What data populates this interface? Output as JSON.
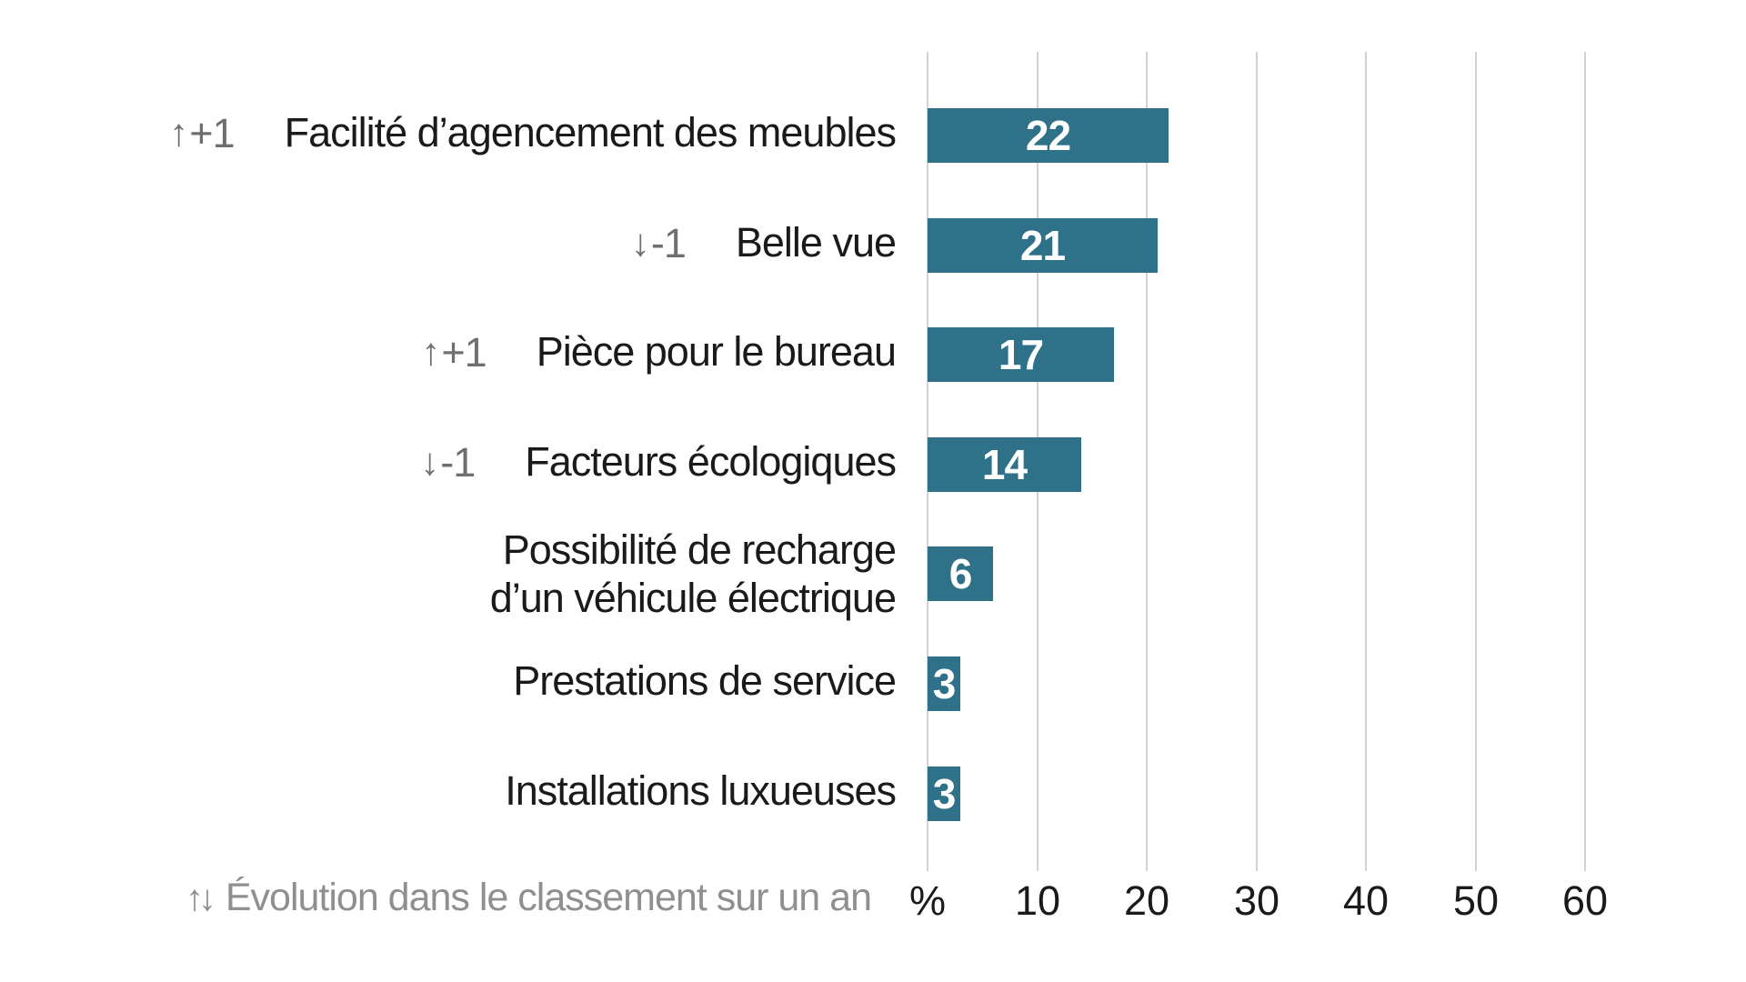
{
  "chart_data": {
    "type": "bar",
    "orientation": "horizontal",
    "title": "",
    "xlabel": "%",
    "ylabel": "",
    "xlim": [
      0,
      60
    ],
    "grid": true,
    "legend": "none",
    "unit_label": "%",
    "xticks": [
      {
        "label": "%",
        "value": 0
      },
      {
        "label": "10",
        "value": 10
      },
      {
        "label": "20",
        "value": 20
      },
      {
        "label": "30",
        "value": 30
      },
      {
        "label": "40",
        "value": 40
      },
      {
        "label": "50",
        "value": 50
      },
      {
        "label": "60",
        "value": 60
      }
    ],
    "rows": [
      {
        "label_lines": [
          "Facilité d’agencement des meubles"
        ],
        "change": {
          "direction": "up",
          "arrow": "↑",
          "text": "+1"
        },
        "value": 22
      },
      {
        "label_lines": [
          "Belle vue"
        ],
        "change": {
          "direction": "down",
          "arrow": "↓",
          "text": "-1"
        },
        "value": 21
      },
      {
        "label_lines": [
          "Pièce pour le bureau"
        ],
        "change": {
          "direction": "up",
          "arrow": "↑",
          "text": "+1"
        },
        "value": 17
      },
      {
        "label_lines": [
          "Facteurs écologiques"
        ],
        "change": {
          "direction": "down",
          "arrow": "↓",
          "text": "-1"
        },
        "value": 14
      },
      {
        "label_lines": [
          "Possibilité de recharge",
          "d’un véhicule électrique"
        ],
        "change": null,
        "value": 6
      },
      {
        "label_lines": [
          "Prestations de service"
        ],
        "change": null,
        "value": 3
      },
      {
        "label_lines": [
          "Installations luxueuses"
        ],
        "change": null,
        "value": 3
      }
    ],
    "footnote": {
      "arrows": "↑↓",
      "text": "Évolution dans le classement sur un an"
    }
  },
  "colors": {
    "bar": "#2e7189",
    "bar_value_text": "#ffffff",
    "gridline": "#d2d2d2",
    "label_text": "#1a1a1a",
    "change_indicator": "#6f6f6f",
    "tick_text": "#1a1a1a",
    "footnote_text": "#8f8f8f",
    "background": "#ffffff"
  }
}
